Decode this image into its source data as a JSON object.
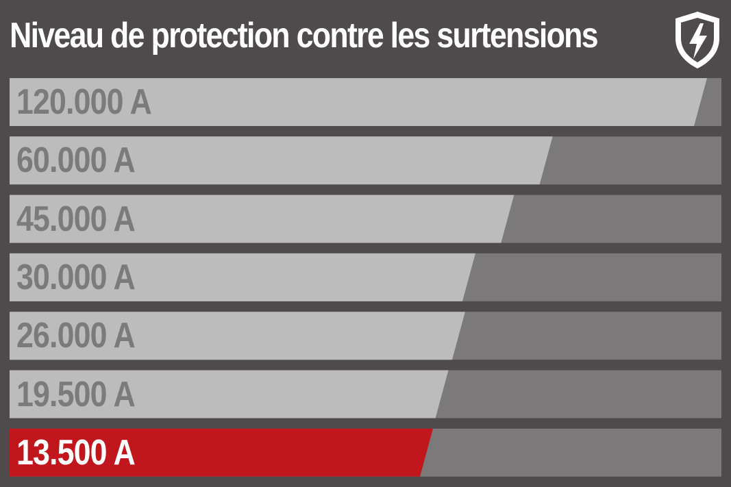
{
  "title": "Niveau de protection contre les surtensions",
  "icon": "shield-lightning-icon",
  "colors": {
    "background": "#4f4b4c",
    "track": "#7b7979",
    "bar": "#bcbcbc",
    "label": "#7c7b7b",
    "highlight_bar": "#c1161c",
    "highlight_label": "#ffffff"
  },
  "chart_data": {
    "type": "bar",
    "orientation": "horizontal",
    "title": "Niveau de protection contre les surtensions",
    "unit": "A",
    "categories": [
      "120.000 A",
      "60.000 A",
      "45.000 A",
      "30.000 A",
      "26.000 A",
      "19.500 A",
      "13.500 A"
    ],
    "values": [
      120000,
      60000,
      45000,
      30000,
      26000,
      19500,
      13500
    ],
    "highlighted_index": 6,
    "grid": false,
    "legend": "none"
  }
}
